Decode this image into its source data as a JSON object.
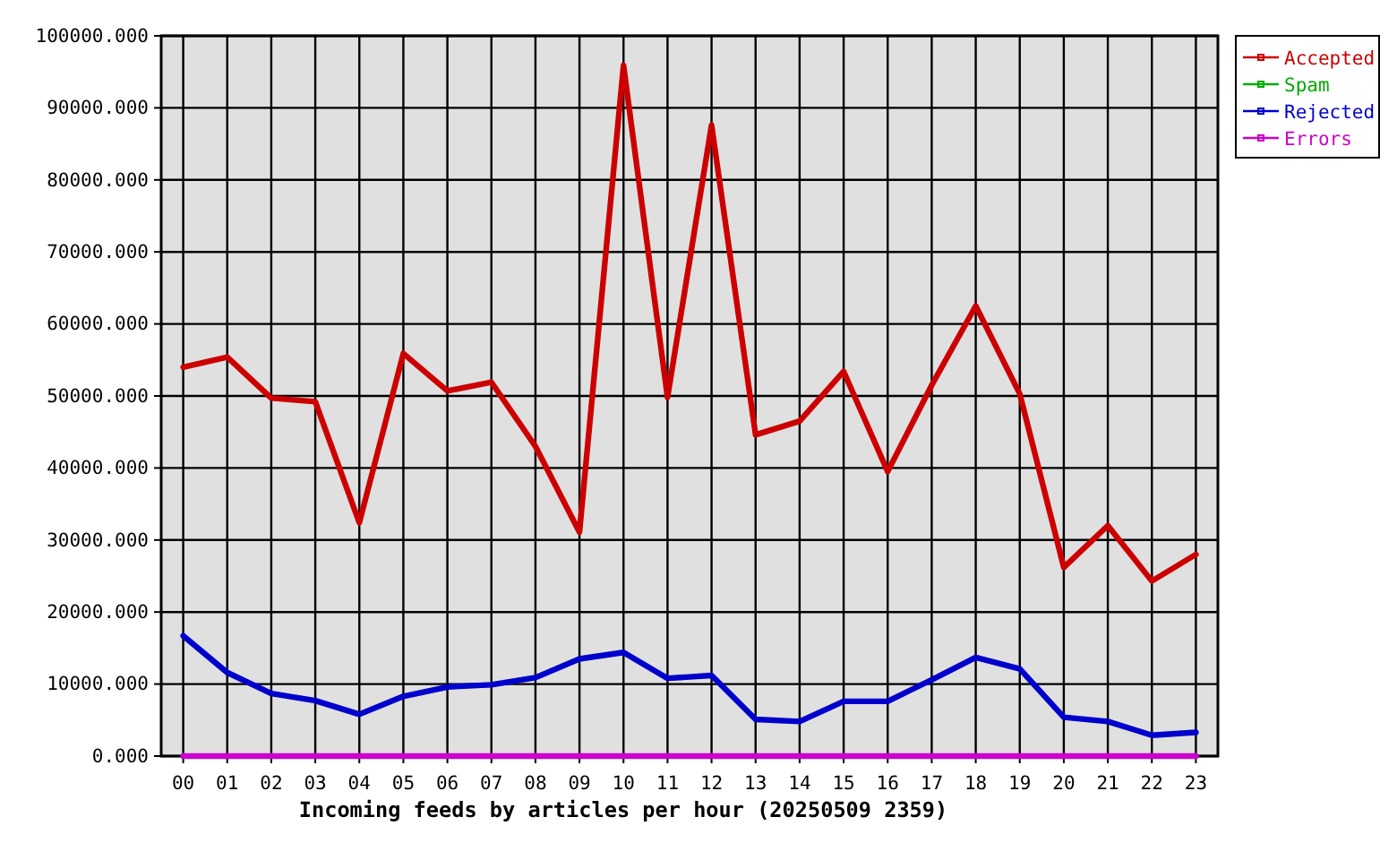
{
  "chart_data": {
    "type": "line",
    "xlabel": "Incoming feeds by articles per hour (20250509 2359)",
    "categories": [
      "00",
      "01",
      "02",
      "03",
      "04",
      "05",
      "06",
      "07",
      "08",
      "09",
      "10",
      "11",
      "12",
      "13",
      "14",
      "15",
      "16",
      "17",
      "18",
      "19",
      "20",
      "21",
      "22",
      "23"
    ],
    "series": [
      {
        "name": "Accepted",
        "color": "#cc0000",
        "values": [
          54000,
          55400,
          49700,
          49200,
          32400,
          55900,
          50700,
          51900,
          43000,
          31100,
          95900,
          49800,
          87600,
          44600,
          46500,
          53400,
          39500,
          51500,
          62500,
          50300,
          26200,
          32000,
          24300,
          28000
        ]
      },
      {
        "name": "Spam",
        "color": "#00aa00",
        "values": [
          null,
          null,
          null,
          null,
          null,
          null,
          null,
          null,
          null,
          null,
          null,
          null,
          null,
          null,
          null,
          null,
          null,
          null,
          null,
          null,
          null,
          null,
          null,
          null
        ]
      },
      {
        "name": "Rejected",
        "color": "#0000cc",
        "values": [
          16700,
          11600,
          8700,
          7700,
          5800,
          8300,
          9600,
          9900,
          10900,
          13500,
          14400,
          10800,
          11200,
          5100,
          4800,
          7600,
          7600,
          10600,
          13700,
          12100,
          5400,
          4800,
          2900,
          3300
        ]
      },
      {
        "name": "Errors",
        "color": "#cc00cc",
        "values": [
          0,
          0,
          0,
          0,
          0,
          0,
          0,
          0,
          0,
          0,
          0,
          0,
          0,
          0,
          0,
          0,
          0,
          0,
          0,
          0,
          0,
          0,
          0,
          0
        ]
      }
    ],
    "ylim": [
      0,
      100000
    ],
    "yticks": [
      {
        "value": 0,
        "label": "0.000"
      },
      {
        "value": 10000,
        "label": "10000.000"
      },
      {
        "value": 20000,
        "label": "20000.000"
      },
      {
        "value": 30000,
        "label": "30000.000"
      },
      {
        "value": 40000,
        "label": "40000.000"
      },
      {
        "value": 50000,
        "label": "50000.000"
      },
      {
        "value": 60000,
        "label": "60000.000"
      },
      {
        "value": 70000,
        "label": "70000.000"
      },
      {
        "value": 80000,
        "label": "80000.000"
      },
      {
        "value": 90000,
        "label": "90000.000"
      },
      {
        "value": 100000,
        "label": "100000.000"
      }
    ],
    "grid": true,
    "legend": "top right",
    "line_style": "solid"
  }
}
